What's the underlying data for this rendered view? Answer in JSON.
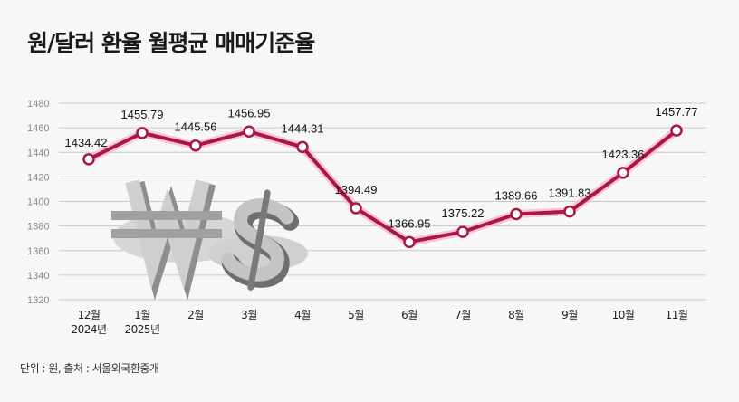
{
  "title": "원/달러 환율 월평균 매매기준율",
  "footnote": "단위 : 원, 출처 : 서울외국환중개",
  "colors": {
    "line": "#a8183f",
    "glow": "#f7b7d6",
    "grid": "#c8c8c8"
  },
  "chart_data": {
    "type": "line",
    "title": "원/달러 환율 월평균 매매기준율",
    "categories": [
      "12월",
      "1월",
      "2월",
      "3월",
      "4월",
      "5월",
      "6월",
      "7월",
      "8월",
      "9월",
      "10월",
      "11월"
    ],
    "category_sublabels": [
      "2024년",
      "2025년",
      "",
      "",
      "",
      "",
      "",
      "",
      "",
      "",
      "",
      ""
    ],
    "values": [
      1434.42,
      1455.79,
      1445.56,
      1456.95,
      1444.31,
      1394.49,
      1366.95,
      1375.22,
      1389.66,
      1391.83,
      1423.36,
      1457.77
    ],
    "value_labels": [
      "1434.42",
      "1455.79",
      "1445.56",
      "1456.95",
      "1444.31",
      "1394.49",
      "1366.95",
      "1375.22",
      "1389.66",
      "1391.83",
      "1423.36",
      "1457.77"
    ],
    "yticks": [
      1320,
      1340,
      1360,
      1380,
      1400,
      1420,
      1440,
      1460,
      1480
    ],
    "ylim": [
      1320,
      1480
    ],
    "xlabel": "",
    "ylabel": "",
    "grid": true,
    "unit": "원",
    "source": "서울외국환중개"
  }
}
